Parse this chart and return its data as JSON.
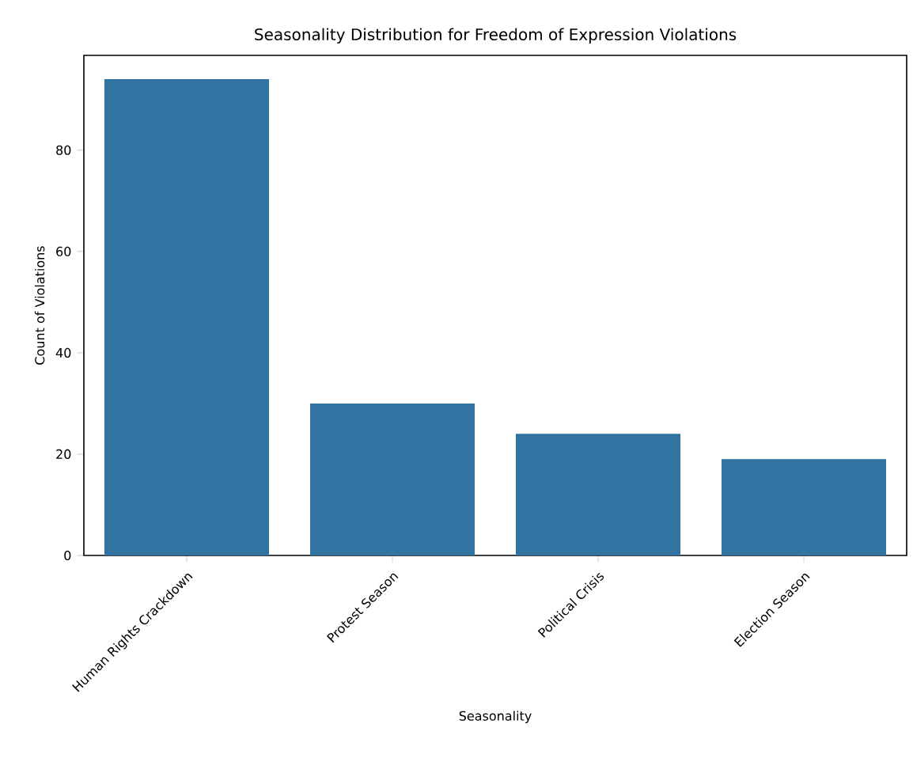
{
  "chart_data": {
    "type": "bar",
    "title": "Seasonality Distribution for Freedom of Expression Violations",
    "xlabel": "Seasonality",
    "ylabel": "Count of Violations",
    "categories": [
      "Human Rights Crackdown",
      "Protest Season",
      "Political Crisis",
      "Election Season"
    ],
    "values": [
      94,
      30,
      24,
      19
    ],
    "color": "#3274a1",
    "ylim": [
      0,
      98.7
    ],
    "yticks": [
      0,
      20,
      40,
      60,
      80
    ],
    "grid": false
  }
}
